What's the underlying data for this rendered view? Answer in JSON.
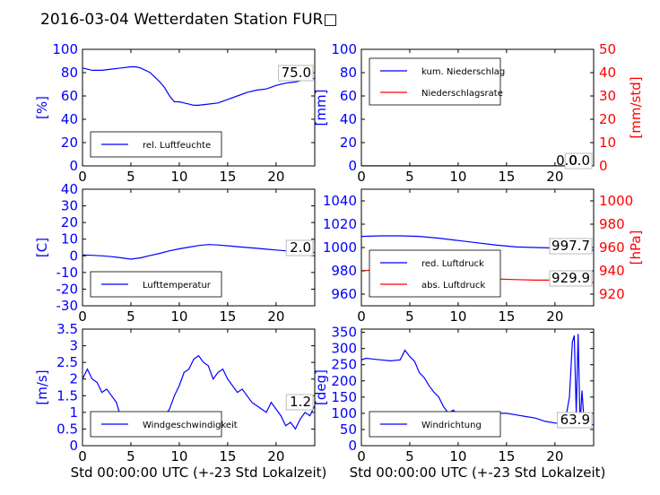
{
  "title": "2016-03-04 Wetterdaten Station FUR□",
  "colors": {
    "left_axis": "#0000ff",
    "right_axis": "#ff0000",
    "line_primary": "#0000ff",
    "line_secondary": "#ff0000",
    "line_light": "#8080ff"
  },
  "chart_data": [
    {
      "type": "line",
      "ylabel": "[%]",
      "xlim": [
        0,
        24
      ],
      "ylim": [
        0,
        100
      ],
      "xticks": [
        0,
        5,
        10,
        15,
        20
      ],
      "yticks": [
        0,
        20,
        40,
        60,
        80,
        100
      ],
      "annotation": "75.0",
      "legend": "bottom-left",
      "series": [
        {
          "name": "rel. Luftfeuchte",
          "x": [
            0,
            1,
            2,
            3,
            4,
            5,
            5.5,
            6,
            7,
            7.5,
            8,
            8.5,
            9,
            9.5,
            10,
            10.5,
            11,
            11.5,
            12,
            13,
            14,
            15,
            16,
            17,
            18,
            19,
            20,
            21,
            22,
            23,
            24
          ],
          "y": [
            84,
            82,
            82,
            83,
            84,
            85,
            85,
            84,
            80,
            76,
            72,
            67,
            60,
            55,
            55,
            54,
            53,
            52,
            52,
            53,
            54,
            57,
            60,
            63,
            65,
            66,
            69,
            71,
            72,
            74,
            75
          ]
        }
      ]
    },
    {
      "type": "line",
      "ylabel": "[mm]",
      "ylabel_right": "[mm/std]",
      "xlim": [
        0,
        24
      ],
      "ylim": [
        0,
        100
      ],
      "ylim_right": [
        0,
        50
      ],
      "xticks": [
        0,
        5,
        10,
        15,
        20
      ],
      "yticks": [
        0,
        20,
        40,
        60,
        80,
        100
      ],
      "yticks_right": [
        0,
        10,
        20,
        30,
        40,
        50
      ],
      "annotation": "0.0",
      "annotation_right": "0.0",
      "legend": "top-left",
      "series": [
        {
          "name": "kum. Niederschlag",
          "axis": "left",
          "x": [
            0,
            24
          ],
          "y": [
            0,
            0
          ]
        },
        {
          "name": "Niederschlagsrate",
          "axis": "right",
          "x": [
            0,
            24
          ],
          "y": [
            0,
            0
          ]
        }
      ]
    },
    {
      "type": "line",
      "ylabel": "[C]",
      "xlim": [
        0,
        24
      ],
      "ylim": [
        -30,
        40
      ],
      "xticks": [
        0,
        5,
        10,
        15,
        20
      ],
      "yticks": [
        -30,
        -20,
        -10,
        0,
        10,
        20,
        30,
        40
      ],
      "annotation": "2.0",
      "legend": "bottom-left",
      "series": [
        {
          "name": "Lufttemperatur",
          "x": [
            0,
            1,
            2,
            3,
            4,
            5,
            6,
            7,
            8,
            9,
            10,
            11,
            12,
            13,
            14,
            15,
            16,
            17,
            18,
            19,
            20,
            21,
            22,
            23,
            24
          ],
          "y": [
            0.5,
            0.3,
            0,
            -0.5,
            -1.2,
            -2,
            -1.2,
            0.2,
            1.5,
            3,
            4.2,
            5.2,
            6.2,
            6.8,
            6.5,
            6,
            5.5,
            5,
            4.5,
            4,
            3.5,
            3,
            2.6,
            2.2,
            2
          ]
        }
      ]
    },
    {
      "type": "line",
      "ylabel_right": "[hPa]",
      "xlim": [
        0,
        24
      ],
      "ylim": [
        950,
        1050
      ],
      "ylim_right": [
        910,
        1010
      ],
      "xticks": [
        0,
        5,
        10,
        15,
        20
      ],
      "yticks": [
        960,
        980,
        1000,
        1020,
        1040
      ],
      "yticks_right": [
        920,
        940,
        960,
        980,
        1000
      ],
      "annotation": "997.7",
      "annotation_right": "929.9",
      "legend": "bottom-left",
      "series": [
        {
          "name": "red. Luftdruck",
          "axis": "left",
          "x": [
            0,
            2,
            4,
            6,
            8,
            10,
            12,
            14,
            16,
            18,
            20,
            22,
            24
          ],
          "y": [
            1009.5,
            1010,
            1010,
            1009.5,
            1008,
            1006,
            1004,
            1002,
            1000.5,
            1000,
            999.5,
            998.5,
            997.7
          ]
        },
        {
          "name": "abs. Luftdruck",
          "axis": "right",
          "x": [
            0,
            2,
            4,
            6,
            8,
            10,
            12,
            14,
            16,
            18,
            20,
            22,
            24
          ],
          "y": [
            940,
            941,
            941,
            940,
            938.5,
            937,
            935,
            933,
            932.5,
            932,
            932,
            931,
            929.9
          ]
        }
      ]
    },
    {
      "type": "line",
      "ylabel": "[m/s]",
      "xlabel": "Std 00:00:00 UTC (+-23 Std Lokalzeit)",
      "xlim": [
        0,
        24
      ],
      "ylim": [
        0,
        3.5
      ],
      "xticks": [
        0,
        5,
        10,
        15,
        20
      ],
      "yticks": [
        0,
        0.5,
        1.0,
        1.5,
        2.0,
        2.5,
        3.0,
        3.5
      ],
      "annotation": "1.2",
      "legend": "bottom-left",
      "series": [
        {
          "name": "Windgeschwindigkeit",
          "x": [
            0,
            0.5,
            1,
            1.5,
            2,
            2.5,
            3,
            3.5,
            4,
            4.5,
            5,
            5.5,
            6,
            6.5,
            7,
            7.5,
            8,
            8.5,
            9,
            9.5,
            10,
            10.5,
            11,
            11.5,
            12,
            12.5,
            13,
            13.5,
            14,
            14.5,
            15,
            15.5,
            16,
            16.5,
            17,
            17.5,
            18,
            18.5,
            19,
            19.5,
            20,
            20.5,
            21,
            21.5,
            22,
            22.5,
            23,
            23.5,
            24
          ],
          "y": [
            2.0,
            2.3,
            2.0,
            1.9,
            1.6,
            1.7,
            1.5,
            1.3,
            0.8,
            0.5,
            0.4,
            0.6,
            0.8,
            0.7,
            0.5,
            0.8,
            1.0,
            0.9,
            1.1,
            1.5,
            1.8,
            2.2,
            2.3,
            2.6,
            2.7,
            2.5,
            2.4,
            2.0,
            2.2,
            2.3,
            2.0,
            1.8,
            1.6,
            1.7,
            1.5,
            1.3,
            1.2,
            1.1,
            1.0,
            1.3,
            1.1,
            0.9,
            0.6,
            0.7,
            0.5,
            0.8,
            1.0,
            0.9,
            1.2
          ]
        }
      ]
    },
    {
      "type": "line",
      "ylabel": "[deg]",
      "xlabel": "Std 00:00:00 UTC (+-23 Std Lokalzeit)",
      "xlim": [
        0,
        24
      ],
      "ylim": [
        0,
        360
      ],
      "xticks": [
        0,
        5,
        10,
        15,
        20
      ],
      "yticks": [
        0,
        50,
        100,
        150,
        200,
        250,
        300,
        350
      ],
      "annotation": "63.9",
      "legend": "bottom-left",
      "series": [
        {
          "name": "Windrichtung",
          "x": [
            0,
            0.5,
            1,
            2,
            3,
            4,
            4.5,
            5,
            5.5,
            6,
            6.5,
            7,
            7.5,
            8,
            8.5,
            9,
            9.5,
            10,
            10.5,
            11,
            12,
            13,
            14,
            15,
            16,
            17,
            18,
            19,
            20,
            21,
            21.5,
            21.8,
            22,
            22.2,
            22.4,
            22.6,
            22.8,
            23,
            23.5,
            24
          ],
          "y": [
            265,
            270,
            268,
            265,
            262,
            265,
            295,
            275,
            260,
            225,
            210,
            185,
            165,
            150,
            120,
            100,
            110,
            95,
            90,
            85,
            90,
            95,
            100,
            100,
            95,
            90,
            85,
            75,
            70,
            65,
            150,
            320,
            340,
            100,
            345,
            60,
            170,
            80,
            70,
            64
          ]
        }
      ]
    }
  ]
}
